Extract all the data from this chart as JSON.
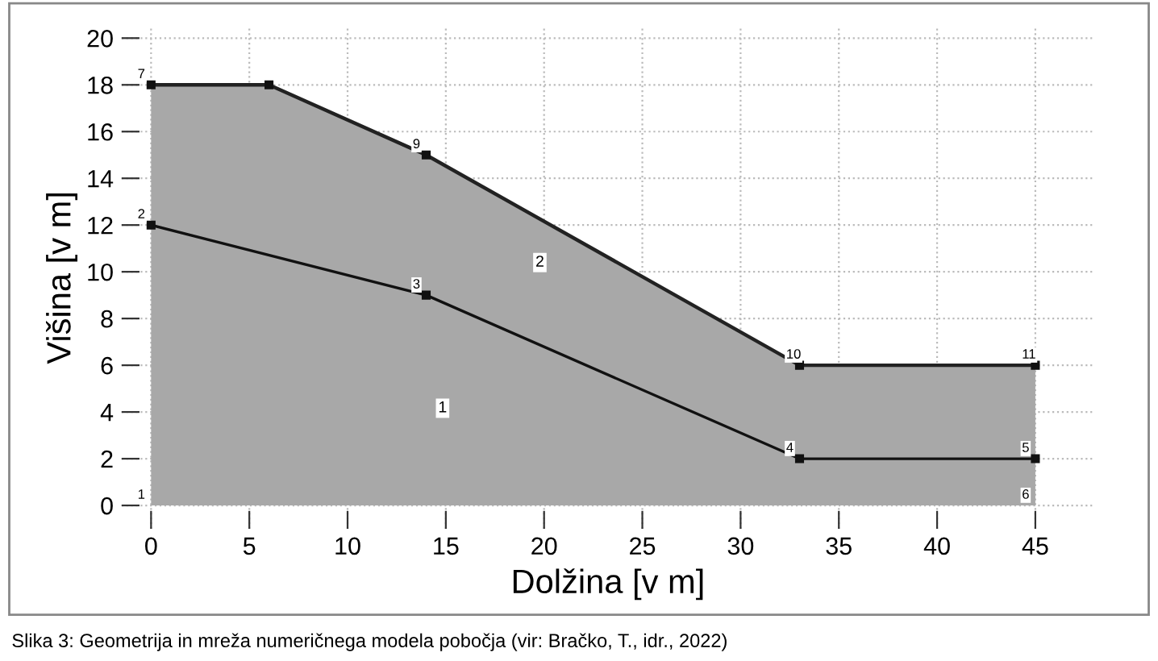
{
  "chart_data": {
    "type": "area",
    "xlabel": "Dolžina [v m]",
    "ylabel": "Višina [v m]",
    "series": [
      {
        "color": "#a8a8a8",
        "x": [
          0,
          6,
          14,
          33,
          45
        ],
        "values": [
          18,
          18,
          15,
          6,
          6
        ]
      },
      {
        "type": "line",
        "color": "#111111",
        "x": [
          0,
          14,
          33,
          45
        ],
        "values": [
          12,
          9,
          2,
          2
        ]
      }
    ],
    "xlim": [
      -1.5,
      48
    ],
    "ylim": [
      -1,
      20.5
    ],
    "xticks": [
      0,
      5,
      10,
      15,
      20,
      25,
      30,
      35,
      40,
      45
    ],
    "yticks": [
      0,
      2,
      4,
      6,
      8,
      10,
      12,
      14,
      16,
      18,
      20
    ],
    "grid": true,
    "marker": "square",
    "line_style": "solid",
    "annotations": [
      {
        "text": "1",
        "x": 0,
        "y": 0
      },
      {
        "text": "2",
        "x": 0,
        "y": 12
      },
      {
        "text": "3",
        "x": 14,
        "y": 9
      },
      {
        "text": "4",
        "x": 33,
        "y": 2
      },
      {
        "text": "5",
        "x": 45,
        "y": 2
      },
      {
        "text": "6",
        "x": 45,
        "y": 0
      },
      {
        "text": "7",
        "x": 0,
        "y": 18
      },
      {
        "text": "9",
        "x": 14,
        "y": 15
      },
      {
        "text": "10",
        "x": 33,
        "y": 6
      },
      {
        "text": "11",
        "x": 45,
        "y": 6
      },
      "1",
      "2",
      "Slika 3: Geometrija in mreža numeričnega modela pobočja (vir: Bračko, T., idr., 2022)"
    ]
  }
}
